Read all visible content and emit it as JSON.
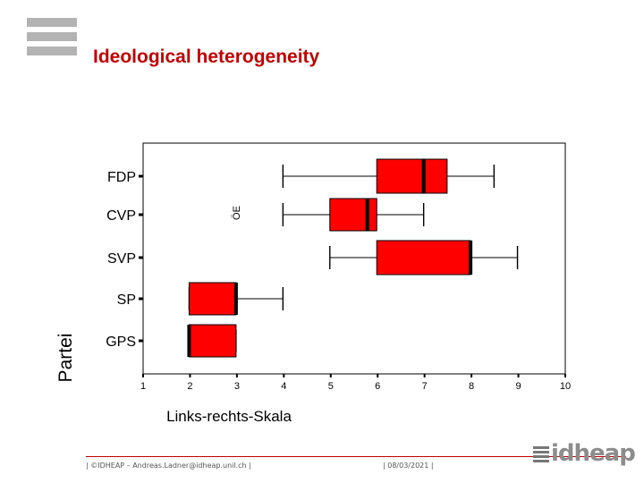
{
  "slide": {
    "title": "Ideological heterogeneity",
    "footer_left": "| ©IDHEAP – Andreas.Ladner@idheap.unil.ch |",
    "footer_date": "| 08/03/2021 |",
    "brand": "idheap"
  },
  "chart_data": {
    "type": "boxplot",
    "title": "",
    "xlabel": "Links-rechts-Skala",
    "ylabel": "Partei",
    "xlim": [
      1,
      10
    ],
    "xticks": [
      1,
      2,
      3,
      4,
      5,
      6,
      7,
      8,
      9,
      10
    ],
    "box_color": "#ff0000",
    "median_color": "#000000",
    "categories": [
      "FDP",
      "CVP",
      "SVP",
      "SP",
      "GPS"
    ],
    "boxes": [
      {
        "name": "FDP",
        "whisker_low": 4,
        "q1": 6,
        "median": 7,
        "q3": 7.5,
        "whisker_high": 8.5
      },
      {
        "name": "CVP",
        "whisker_low": 4,
        "q1": 5,
        "median": 5.8,
        "q3": 6,
        "whisker_high": 7
      },
      {
        "name": "SVP",
        "whisker_low": 5,
        "q1": 6,
        "median": 8,
        "q3": 8,
        "whisker_high": 9
      },
      {
        "name": "SP",
        "whisker_low": 2,
        "q1": 2,
        "median": 3,
        "q3": 3,
        "whisker_high": 4
      },
      {
        "name": "GPS",
        "whisker_low": 2,
        "q1": 2,
        "median": 2,
        "q3": 3,
        "whisker_high": 3
      }
    ],
    "annotations": [
      {
        "text": "ÖE"
      }
    ]
  }
}
